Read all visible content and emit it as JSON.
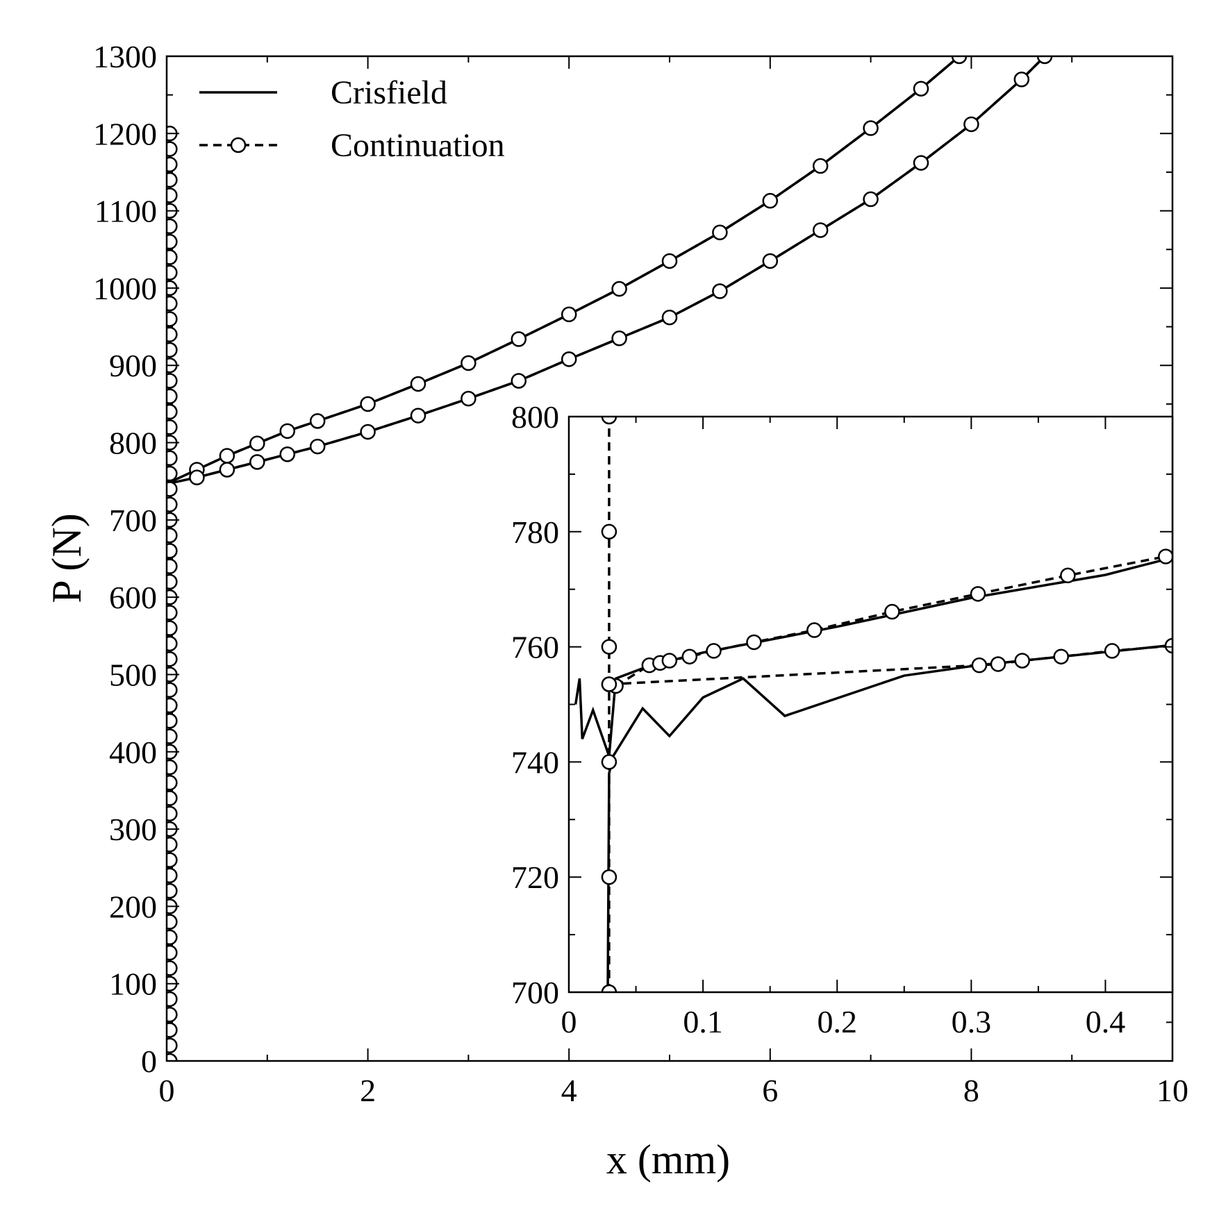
{
  "chart_data": [
    {
      "type": "line",
      "xlabel": "x (mm)",
      "ylabel": "P (N)",
      "xlim": [
        0,
        10
      ],
      "ylim": [
        0,
        1300
      ],
      "xticks": [
        0,
        2,
        4,
        6,
        8,
        10
      ],
      "yticks": [
        0,
        100,
        200,
        300,
        400,
        500,
        600,
        700,
        800,
        900,
        1000,
        1100,
        1200,
        1300
      ],
      "legend": "upper left",
      "series": [
        {
          "name": "Crisfield",
          "color": "#000000",
          "line_style": "solid",
          "marker": "none",
          "x": [
            0.03,
            0.035,
            0.04,
            0.05,
            0.3,
            0.6,
            0.9,
            1.2,
            1.5,
            2,
            2.5,
            3,
            3.5,
            4,
            4.5,
            5,
            5.5,
            6,
            6.5,
            7,
            7.5,
            7.88,
            null,
            0.05,
            0.3,
            0.6,
            0.9,
            1.2,
            1.5,
            2,
            2.5,
            3,
            3.5,
            4,
            4.5,
            5,
            5.5,
            6,
            6.5,
            7,
            7.5,
            8,
            8.5,
            8.73
          ],
          "values": [
            0,
            400,
            740,
            750,
            765,
            783,
            799,
            815,
            828,
            850,
            876,
            903,
            934,
            966,
            999,
            1035,
            1072,
            1113,
            1158,
            1207,
            1258,
            1300,
            null,
            748,
            755,
            765,
            775,
            785,
            795,
            814,
            835,
            857,
            880,
            908,
            935,
            962,
            996,
            1035,
            1075,
            1115,
            1162,
            1212,
            1270,
            1300
          ]
        },
        {
          "name": "Continuation",
          "color": "#000000",
          "line_style": "dashed",
          "marker": "circle",
          "x": [
            0.03,
            0.03,
            0.03,
            0.03,
            0.03,
            0.03,
            0.03,
            0.03,
            0.03,
            0.03,
            0.03,
            0.03,
            0.03,
            0.03,
            0.03,
            0.03,
            0.03,
            0.03,
            0.03,
            0.03,
            0.03,
            0.03,
            0.03,
            0.03,
            0.03,
            0.03,
            0.03,
            0.03,
            0.03,
            0.03,
            0.03,
            0.03,
            0.03,
            0.03,
            0.03,
            0.03,
            0.03,
            0.03,
            0.03,
            0.03,
            0.03,
            0.03,
            0.03,
            0.03,
            0.03,
            0.03,
            0.03,
            0.03,
            0.03,
            0.03,
            0.03,
            0.03,
            0.03,
            0.03,
            0.03,
            0.03,
            0.03,
            0.03,
            0.03,
            0.03,
            0.03,
            null,
            0.3,
            0.6,
            0.9,
            1.2,
            1.5,
            2,
            2.5,
            3,
            3.5,
            4,
            4.5,
            5,
            5.5,
            6,
            6.5,
            7,
            7.5,
            7.88,
            null,
            0.3,
            0.6,
            0.9,
            1.2,
            1.5,
            2,
            2.5,
            3,
            3.5,
            4,
            4.5,
            5,
            5.5,
            6,
            6.5,
            7,
            7.5,
            8,
            8.5,
            8.73
          ],
          "values": [
            0,
            20,
            40,
            60,
            80,
            100,
            120,
            140,
            160,
            180,
            200,
            220,
            240,
            260,
            280,
            300,
            320,
            340,
            360,
            380,
            400,
            420,
            440,
            460,
            480,
            500,
            520,
            540,
            560,
            580,
            600,
            620,
            640,
            660,
            680,
            700,
            720,
            740,
            760,
            780,
            800,
            820,
            840,
            860,
            880,
            900,
            920,
            940,
            960,
            980,
            1000,
            1020,
            1040,
            1060,
            1080,
            1100,
            1120,
            1140,
            1160,
            1180,
            1200,
            null,
            765,
            783,
            799,
            815,
            828,
            850,
            876,
            903,
            934,
            966,
            999,
            1035,
            1072,
            1113,
            1158,
            1207,
            1258,
            1300,
            null,
            755,
            765,
            775,
            785,
            795,
            814,
            835,
            857,
            880,
            908,
            935,
            962,
            996,
            1035,
            1075,
            1115,
            1162,
            1212,
            1270,
            1300
          ]
        }
      ]
    },
    {
      "type": "line",
      "xlim": [
        0,
        0.45
      ],
      "ylim": [
        700,
        800
      ],
      "xticks": [
        0,
        0.1,
        0.2,
        0.3,
        0.4
      ],
      "yticks": [
        700,
        720,
        740,
        760,
        780,
        800
      ],
      "series": [
        {
          "color": "#000000",
          "line_style": "solid",
          "marker": "none",
          "x": [
            0.029,
            0.03,
            0.033,
            0.055,
            0.075,
            0.1,
            0.13,
            0.161,
            0.25,
            0.305,
            0.45,
            null,
            0.005,
            0.008,
            0.01,
            0.018,
            0.03,
            0.035,
            0.06,
            0.1,
            0.2,
            0.3,
            0.4,
            0.445
          ],
          "values": [
            700,
            738,
            741,
            749.3,
            744.5,
            751.2,
            754.5,
            748,
            755,
            756.8,
            760.3,
            null,
            750,
            754.5,
            744,
            749,
            741,
            754.5,
            756.7,
            759,
            763.5,
            768.5,
            772.5,
            775.2
          ]
        },
        {
          "color": "#000000",
          "line_style": "dashed",
          "marker": "circle",
          "x": [
            0.03,
            0.03,
            0.03,
            0.03,
            0.03,
            0.03,
            0.03,
            null,
            0.035,
            0.06,
            0.068,
            0.075,
            0.09,
            0.108,
            0.138,
            0.183,
            0.241,
            0.305,
            0.372,
            0.445,
            null,
            0.03,
            0.306,
            0.32,
            0.338,
            0.367,
            0.405,
            0.45
          ],
          "values": [
            700,
            720,
            740,
            753.5,
            760,
            780,
            800,
            null,
            753.2,
            756.8,
            757.2,
            757.6,
            758.3,
            759.3,
            760.8,
            762.9,
            766.1,
            769.2,
            772.4,
            775.7,
            null,
            753.5,
            756.8,
            757,
            757.6,
            758.3,
            759.3,
            760.2
          ]
        }
      ]
    }
  ]
}
